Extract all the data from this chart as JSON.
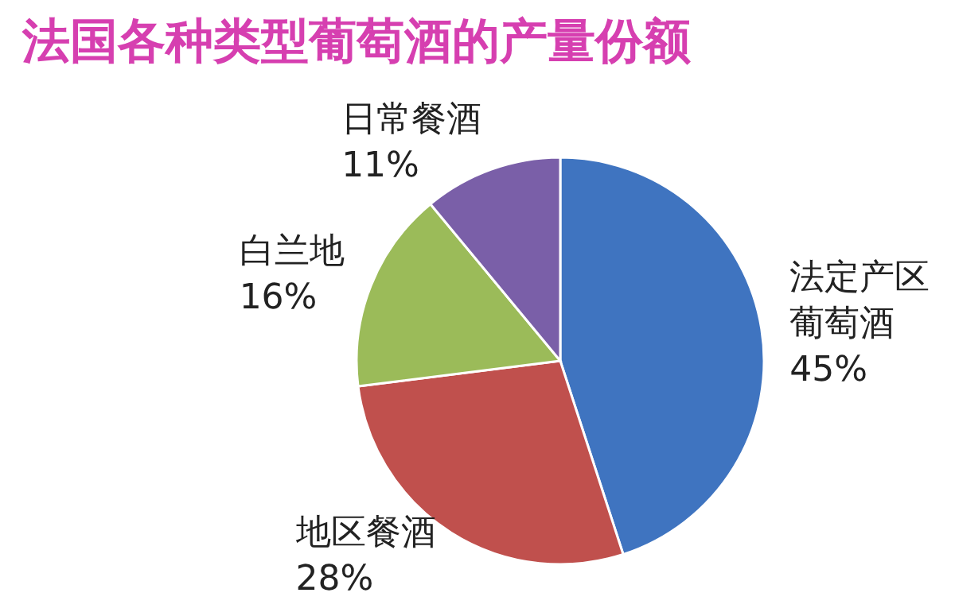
{
  "chart_data": {
    "type": "pie",
    "title": "法国各种类型葡萄酒的产量份额",
    "categories": [
      "法定产区葡萄酒",
      "地区餐酒",
      "白兰地",
      "日常餐酒"
    ],
    "values": [
      45,
      28,
      16,
      11
    ],
    "colors": [
      "#3f74c0",
      "#c0504d",
      "#9bbb59",
      "#7a5fa8"
    ],
    "value_labels": [
      "45%",
      "28%",
      "16%",
      "11%"
    ]
  }
}
